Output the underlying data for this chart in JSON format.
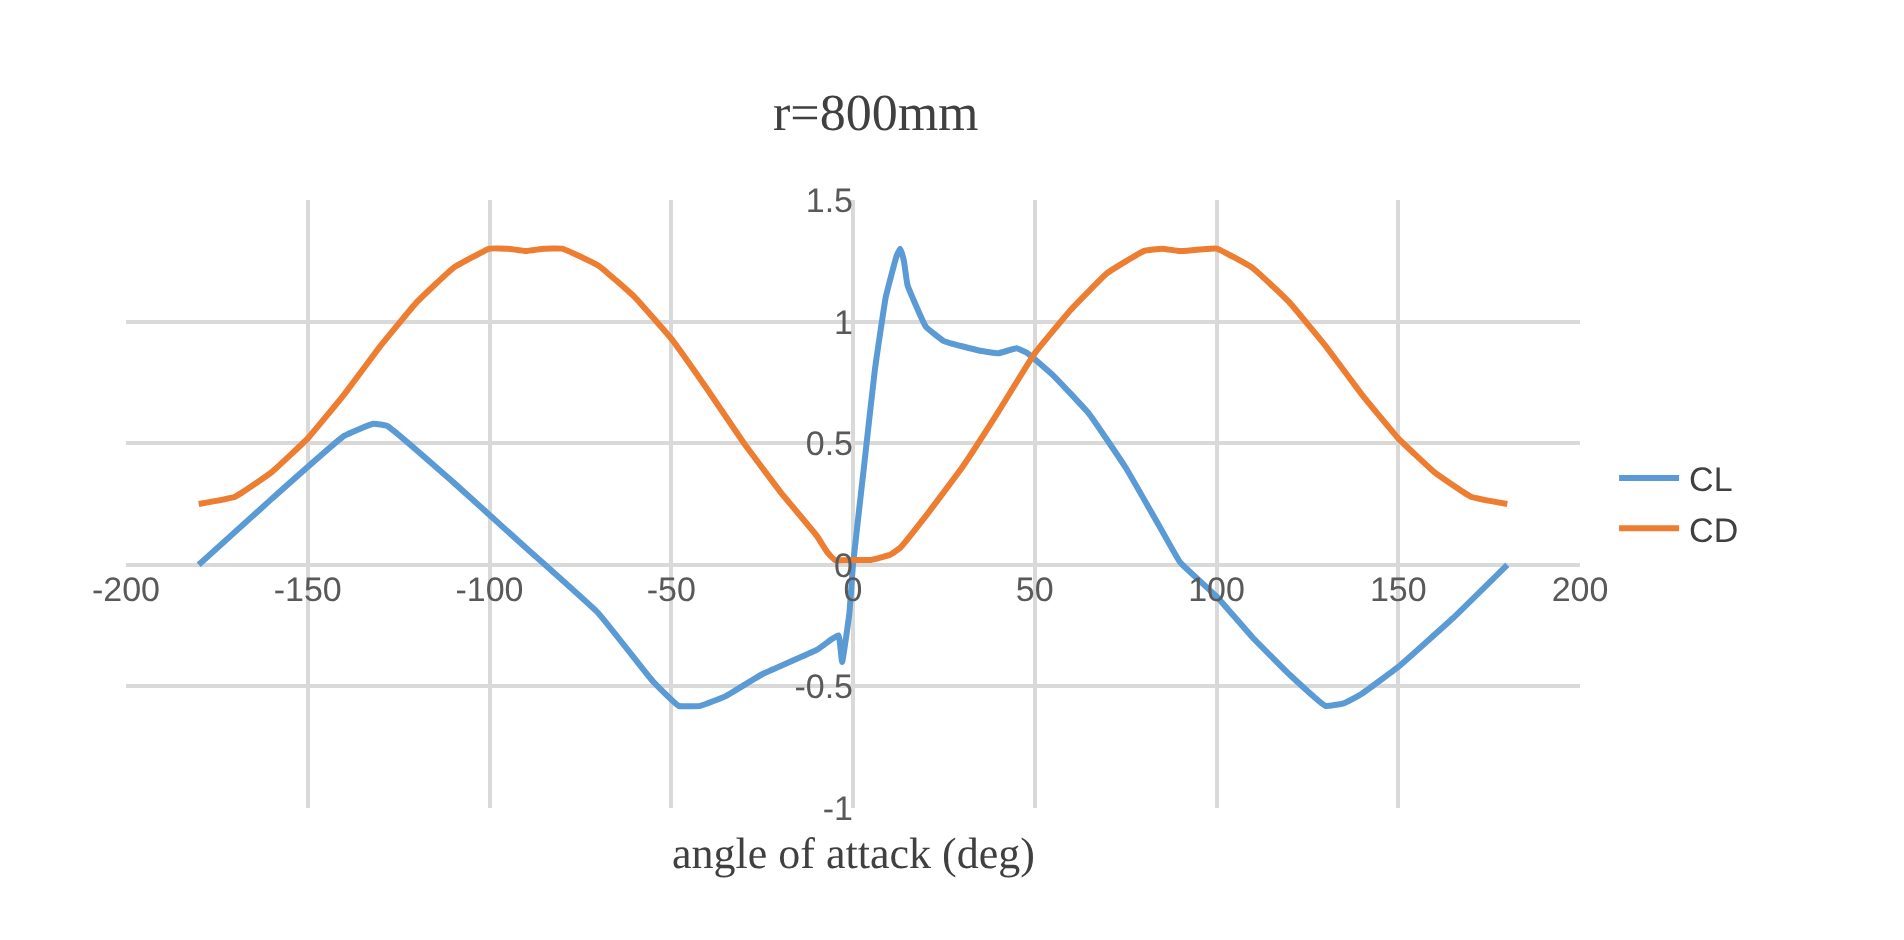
{
  "chart_data": {
    "type": "line",
    "title": "r=800mm",
    "xlabel": "angle of attack (deg)",
    "xlim": [
      -200,
      200
    ],
    "xticks": [
      -200,
      -150,
      -100,
      -50,
      0,
      50,
      100,
      150,
      200
    ],
    "ylim": [
      -1,
      1.5
    ],
    "yticks": [
      -1,
      -0.5,
      0,
      0.5,
      1,
      1.5
    ],
    "grid": true,
    "legend": "right",
    "marker": "none",
    "line_style": "solid",
    "series": [
      {
        "name": "CL",
        "color": "#5b9bd5",
        "x": [
          -180,
          -160,
          -140,
          -132,
          -128,
          -110,
          -90,
          -70,
          -55,
          -48,
          -42,
          -35,
          -25,
          -10,
          -4,
          -3,
          -1,
          0,
          3,
          6,
          9,
          12,
          13,
          14,
          15,
          20,
          25,
          35,
          40,
          45,
          48,
          55,
          65,
          75,
          85,
          90,
          100,
          110,
          120,
          130,
          135,
          140,
          150,
          165,
          180
        ],
        "values": [
          0,
          0.27,
          0.53,
          0.58,
          0.57,
          0.34,
          0.07,
          -0.2,
          -0.48,
          -0.58,
          -0.58,
          -0.54,
          -0.45,
          -0.35,
          -0.29,
          -0.4,
          -0.2,
          0,
          0.4,
          0.8,
          1.1,
          1.27,
          1.3,
          1.25,
          1.15,
          0.98,
          0.92,
          0.88,
          0.87,
          0.89,
          0.87,
          0.78,
          0.62,
          0.4,
          0.14,
          0.01,
          -0.13,
          -0.3,
          -0.45,
          -0.58,
          -0.57,
          -0.53,
          -0.42,
          -0.22,
          0
        ]
      },
      {
        "name": "CD",
        "color": "#ed7d31",
        "x": [
          -180,
          -170,
          -160,
          -150,
          -140,
          -130,
          -120,
          -110,
          -100,
          -95,
          -90,
          -85,
          -80,
          -70,
          -60,
          -50,
          -40,
          -30,
          -20,
          -10,
          -7,
          -5,
          0,
          5,
          10,
          13,
          20,
          30,
          40,
          50,
          60,
          70,
          80,
          85,
          90,
          100,
          110,
          120,
          130,
          140,
          150,
          160,
          170,
          180
        ],
        "values": [
          0.25,
          0.28,
          0.38,
          0.52,
          0.7,
          0.9,
          1.08,
          1.22,
          1.3,
          1.3,
          1.29,
          1.3,
          1.3,
          1.23,
          1.1,
          0.93,
          0.72,
          0.5,
          0.3,
          0.12,
          0.05,
          0.02,
          0.02,
          0.02,
          0.04,
          0.07,
          0.2,
          0.4,
          0.63,
          0.87,
          1.05,
          1.2,
          1.29,
          1.3,
          1.29,
          1.3,
          1.22,
          1.08,
          0.9,
          0.7,
          0.52,
          0.38,
          0.28,
          0.25
        ]
      }
    ]
  }
}
